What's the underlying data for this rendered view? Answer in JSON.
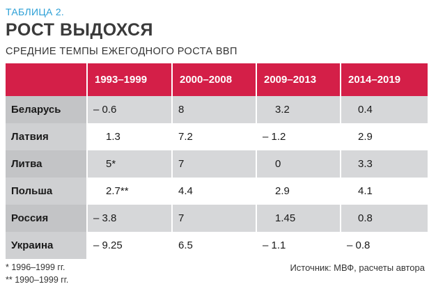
{
  "header": {
    "label": "ТАБЛИЦА 2.",
    "title": "РОСТ ВЫДОХСЯ",
    "subtitle": "СРЕДНИЕ ТЕМПЫ ЕЖЕГОДНОГО РОСТА ВВП"
  },
  "colors": {
    "label": "#2a9fd6",
    "header_fill": "#d41f48",
    "row_shade": "#d6d7d9"
  },
  "chart_data": {
    "type": "table",
    "columns": [
      "",
      "1993–1999",
      "2000–2008",
      "2009–2013",
      "2014–2019"
    ],
    "rows": [
      {
        "country": "Беларусь",
        "values": [
          "– 0.6",
          "8",
          "3.2",
          "0.4"
        ]
      },
      {
        "country": "Латвия",
        "values": [
          "1.3",
          "7.2",
          "– 1.2",
          "2.9"
        ]
      },
      {
        "country": "Литва",
        "values": [
          "5*",
          "7",
          "0",
          "3.3"
        ]
      },
      {
        "country": "Польша",
        "values": [
          "2.7**",
          "4.4",
          "2.9",
          "4.1"
        ]
      },
      {
        "country": "Россия",
        "values": [
          "– 3.8",
          "7",
          "1.45",
          "0.8"
        ]
      },
      {
        "country": "Украина",
        "values": [
          "– 9.25",
          "6.5",
          "– 1.1",
          "– 0.8"
        ]
      }
    ]
  },
  "footnotes": {
    "note1": "* 1996–1999 гг.",
    "note2": "** 1990–1999 гг.",
    "source": "Источник: МВФ, расчеты автора"
  }
}
